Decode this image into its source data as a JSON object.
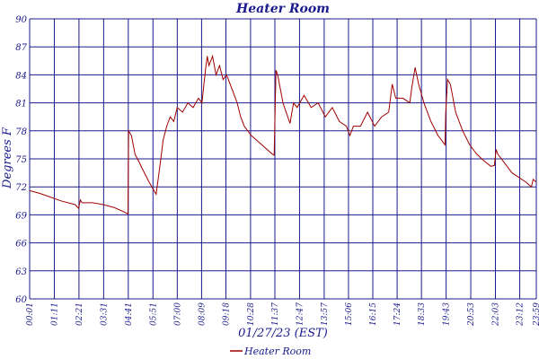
{
  "chart_data": {
    "type": "line",
    "title": "Heater Room",
    "xlabel": "01/27/23 (EST)",
    "ylabel": "Degrees F",
    "y_tick_labels": [
      "60",
      "63",
      "66",
      "69",
      "72",
      "75",
      "78",
      "81",
      "84",
      "87",
      "90"
    ],
    "ylim": [
      60,
      90
    ],
    "x_tick_labels": [
      "00:01",
      "01:11",
      "02:21",
      "03:31",
      "04:41",
      "05:51",
      "07:00",
      "08:09",
      "09:18",
      "10:28",
      "11:37",
      "12:47",
      "13:57",
      "15:06",
      "16:15",
      "17:24",
      "18:33",
      "19:43",
      "20:53",
      "22:03",
      "23:12",
      "23:59"
    ],
    "xlim": [
      "00:01",
      "23:59"
    ],
    "grid": true,
    "legend_position": "bottom-center",
    "colors": {
      "series": "#a00000",
      "text": "#1a1a8c",
      "grid": "#1a1a8c"
    },
    "series": [
      {
        "name": "Heater Room",
        "points": [
          [
            "00:01",
            71.6
          ],
          [
            "00:30",
            71.3
          ],
          [
            "01:00",
            70.9
          ],
          [
            "01:30",
            70.5
          ],
          [
            "02:10",
            70.1
          ],
          [
            "02:20",
            69.7
          ],
          [
            "02:25",
            70.6
          ],
          [
            "02:30",
            70.3
          ],
          [
            "03:00",
            70.3
          ],
          [
            "03:30",
            70.1
          ],
          [
            "04:00",
            69.8
          ],
          [
            "04:30",
            69.3
          ],
          [
            "04:40",
            69.1
          ],
          [
            "04:42",
            78.0
          ],
          [
            "04:50",
            77.5
          ],
          [
            "05:00",
            75.5
          ],
          [
            "05:10",
            74.8
          ],
          [
            "05:20",
            74.0
          ],
          [
            "05:40",
            72.5
          ],
          [
            "06:00",
            71.2
          ],
          [
            "06:10",
            74.0
          ],
          [
            "06:20",
            77.0
          ],
          [
            "06:30",
            78.5
          ],
          [
            "06:40",
            79.5
          ],
          [
            "06:50",
            79.0
          ],
          [
            "07:00",
            80.5
          ],
          [
            "07:15",
            80.0
          ],
          [
            "07:30",
            81.0
          ],
          [
            "07:45",
            80.5
          ],
          [
            "08:00",
            81.5
          ],
          [
            "08:10",
            81.0
          ],
          [
            "08:20",
            84.5
          ],
          [
            "08:25",
            86.0
          ],
          [
            "08:30",
            85.0
          ],
          [
            "08:40",
            86.0
          ],
          [
            "08:50",
            84.0
          ],
          [
            "09:00",
            85.0
          ],
          [
            "09:10",
            83.5
          ],
          [
            "09:20",
            84.0
          ],
          [
            "09:30",
            83.0
          ],
          [
            "09:40",
            82.0
          ],
          [
            "09:50",
            81.0
          ],
          [
            "10:00",
            79.5
          ],
          [
            "10:10",
            78.5
          ],
          [
            "10:30",
            77.5
          ],
          [
            "11:00",
            76.5
          ],
          [
            "11:30",
            75.5
          ],
          [
            "11:35",
            75.4
          ],
          [
            "11:40",
            84.5
          ],
          [
            "11:45",
            84.0
          ],
          [
            "12:00",
            81.0
          ],
          [
            "12:20",
            78.8
          ],
          [
            "12:30",
            81.0
          ],
          [
            "12:40",
            80.5
          ],
          [
            "13:00",
            81.8
          ],
          [
            "13:20",
            80.5
          ],
          [
            "13:40",
            81.0
          ],
          [
            "14:00",
            79.5
          ],
          [
            "14:20",
            80.5
          ],
          [
            "14:40",
            79.0
          ],
          [
            "15:00",
            78.5
          ],
          [
            "15:10",
            77.5
          ],
          [
            "15:20",
            78.5
          ],
          [
            "15:40",
            78.5
          ],
          [
            "16:00",
            80.0
          ],
          [
            "16:20",
            78.5
          ],
          [
            "16:40",
            79.5
          ],
          [
            "17:00",
            80.0
          ],
          [
            "17:10",
            83.0
          ],
          [
            "17:20",
            81.5
          ],
          [
            "17:40",
            81.5
          ],
          [
            "18:00",
            81.0
          ],
          [
            "18:05",
            82.5
          ],
          [
            "18:15",
            84.8
          ],
          [
            "18:25",
            83.0
          ],
          [
            "18:40",
            81.0
          ],
          [
            "19:00",
            79.0
          ],
          [
            "19:20",
            77.5
          ],
          [
            "19:40",
            76.5
          ],
          [
            "19:42",
            80.0
          ],
          [
            "19:47",
            83.5
          ],
          [
            "19:55",
            83.0
          ],
          [
            "20:10",
            80.0
          ],
          [
            "20:30",
            78.0
          ],
          [
            "20:50",
            76.5
          ],
          [
            "21:10",
            75.5
          ],
          [
            "21:30",
            74.8
          ],
          [
            "21:50",
            74.2
          ],
          [
            "22:00",
            74.3
          ],
          [
            "22:05",
            76.0
          ],
          [
            "22:10",
            75.5
          ],
          [
            "22:30",
            74.5
          ],
          [
            "22:50",
            73.5
          ],
          [
            "23:10",
            73.0
          ],
          [
            "23:30",
            72.5
          ],
          [
            "23:45",
            72.0
          ],
          [
            "23:50",
            72.8
          ],
          [
            "23:59",
            72.5
          ]
        ]
      }
    ]
  }
}
